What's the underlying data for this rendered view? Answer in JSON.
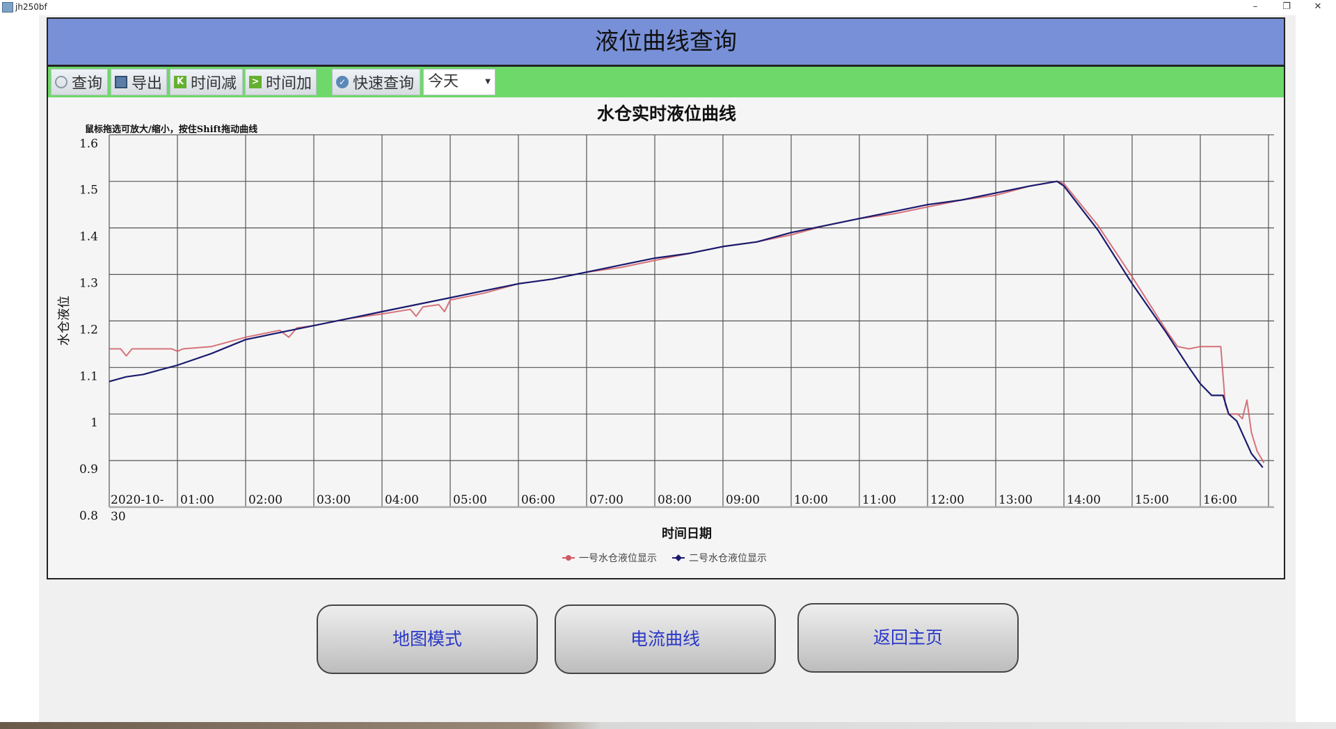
{
  "window": {
    "title": "jh250bf",
    "minimize": "–",
    "restore": "❐",
    "close": "✕"
  },
  "header": {
    "title": "液位曲线查询"
  },
  "toolbar": {
    "query": "查询",
    "export": "导出",
    "time_minus": "时间减",
    "time_plus": "时间加",
    "quick_query": "快速查询",
    "range_select": "今天"
  },
  "icons": {
    "query": "clock-icon",
    "export": "save-icon",
    "time_minus": "prev-icon",
    "time_plus": "next-icon",
    "quick_query": "check-icon"
  },
  "chart_data": {
    "type": "line",
    "title": "水仓实时液位曲线",
    "hint": "鼠标拖选可放大/缩小，按住Shift拖动曲线",
    "xlabel": "时间日期",
    "ylabel": "水仓液位",
    "ylim": [
      0.8,
      1.6
    ],
    "yticks": [
      "1.6",
      "1.5",
      "1.4",
      "1.3",
      "1.2",
      "1.1",
      "1",
      "0.9",
      "0.8"
    ],
    "xlim": [
      "00:00",
      "17:00"
    ],
    "xticks": [
      "2020-10-30",
      "01:00",
      "02:00",
      "03:00",
      "04:00",
      "05:00",
      "06:00",
      "07:00",
      "08:00",
      "09:00",
      "10:00",
      "11:00",
      "12:00",
      "13:00",
      "14:00",
      "15:00",
      "16:00"
    ],
    "grid": true,
    "legend_position": "bottom",
    "series": [
      {
        "name": "一号水仓液位显示",
        "color": "#d05a64",
        "points": [
          [
            "00:00",
            1.14
          ],
          [
            "00:10",
            1.14
          ],
          [
            "00:15",
            1.125
          ],
          [
            "00:20",
            1.14
          ],
          [
            "00:55",
            1.14
          ],
          [
            "01:00",
            1.135
          ],
          [
            "01:05",
            1.14
          ],
          [
            "01:30",
            1.145
          ],
          [
            "02:00",
            1.165
          ],
          [
            "02:30",
            1.18
          ],
          [
            "02:38",
            1.165
          ],
          [
            "02:45",
            1.185
          ],
          [
            "03:00",
            1.19
          ],
          [
            "03:30",
            1.205
          ],
          [
            "04:00",
            1.215
          ],
          [
            "04:25",
            1.225
          ],
          [
            "04:30",
            1.21
          ],
          [
            "04:36",
            1.23
          ],
          [
            "04:50",
            1.235
          ],
          [
            "04:55",
            1.22
          ],
          [
            "05:00",
            1.245
          ],
          [
            "05:30",
            1.26
          ],
          [
            "06:00",
            1.28
          ],
          [
            "06:30",
            1.29
          ],
          [
            "07:00",
            1.305
          ],
          [
            "07:30",
            1.315
          ],
          [
            "08:00",
            1.33
          ],
          [
            "08:30",
            1.345
          ],
          [
            "09:00",
            1.36
          ],
          [
            "09:30",
            1.37
          ],
          [
            "10:00",
            1.385
          ],
          [
            "10:30",
            1.405
          ],
          [
            "11:00",
            1.42
          ],
          [
            "11:30",
            1.43
          ],
          [
            "12:00",
            1.445
          ],
          [
            "12:30",
            1.46
          ],
          [
            "13:00",
            1.47
          ],
          [
            "13:30",
            1.49
          ],
          [
            "13:54",
            1.5
          ],
          [
            "14:00",
            1.495
          ],
          [
            "14:30",
            1.405
          ],
          [
            "15:00",
            1.295
          ],
          [
            "15:30",
            1.18
          ],
          [
            "15:40",
            1.145
          ],
          [
            "15:50",
            1.14
          ],
          [
            "16:00",
            1.145
          ],
          [
            "16:18",
            1.145
          ],
          [
            "16:22",
            1.02
          ],
          [
            "16:25",
            1.0
          ],
          [
            "16:33",
            1.0
          ],
          [
            "16:37",
            0.99
          ],
          [
            "16:41",
            1.03
          ],
          [
            "16:45",
            0.96
          ],
          [
            "16:50",
            0.92
          ],
          [
            "16:56",
            0.895
          ]
        ]
      },
      {
        "name": "二号水仓液位显示",
        "color": "#1a1a6e",
        "points": [
          [
            "00:00",
            1.07
          ],
          [
            "00:15",
            1.08
          ],
          [
            "00:30",
            1.085
          ],
          [
            "00:45",
            1.095
          ],
          [
            "01:00",
            1.105
          ],
          [
            "01:30",
            1.13
          ],
          [
            "02:00",
            1.16
          ],
          [
            "02:30",
            1.175
          ],
          [
            "03:00",
            1.19
          ],
          [
            "03:30",
            1.205
          ],
          [
            "04:00",
            1.22
          ],
          [
            "04:30",
            1.235
          ],
          [
            "05:00",
            1.25
          ],
          [
            "05:30",
            1.265
          ],
          [
            "06:00",
            1.28
          ],
          [
            "06:30",
            1.29
          ],
          [
            "07:00",
            1.305
          ],
          [
            "07:30",
            1.32
          ],
          [
            "08:00",
            1.335
          ],
          [
            "08:30",
            1.345
          ],
          [
            "09:00",
            1.36
          ],
          [
            "09:30",
            1.37
          ],
          [
            "10:00",
            1.39
          ],
          [
            "10:30",
            1.405
          ],
          [
            "11:00",
            1.42
          ],
          [
            "11:30",
            1.435
          ],
          [
            "12:00",
            1.45
          ],
          [
            "12:30",
            1.46
          ],
          [
            "13:00",
            1.475
          ],
          [
            "13:30",
            1.49
          ],
          [
            "13:54",
            1.5
          ],
          [
            "14:00",
            1.49
          ],
          [
            "14:30",
            1.395
          ],
          [
            "15:00",
            1.28
          ],
          [
            "15:30",
            1.175
          ],
          [
            "15:50",
            1.1
          ],
          [
            "16:00",
            1.065
          ],
          [
            "16:10",
            1.04
          ],
          [
            "16:20",
            1.04
          ],
          [
            "16:25",
            1.0
          ],
          [
            "16:32",
            0.985
          ],
          [
            "16:45",
            0.915
          ],
          [
            "16:55",
            0.885
          ]
        ]
      }
    ]
  },
  "buttons": {
    "map_mode": "地图模式",
    "current_curve": "电流曲线",
    "home": "返回主页"
  }
}
